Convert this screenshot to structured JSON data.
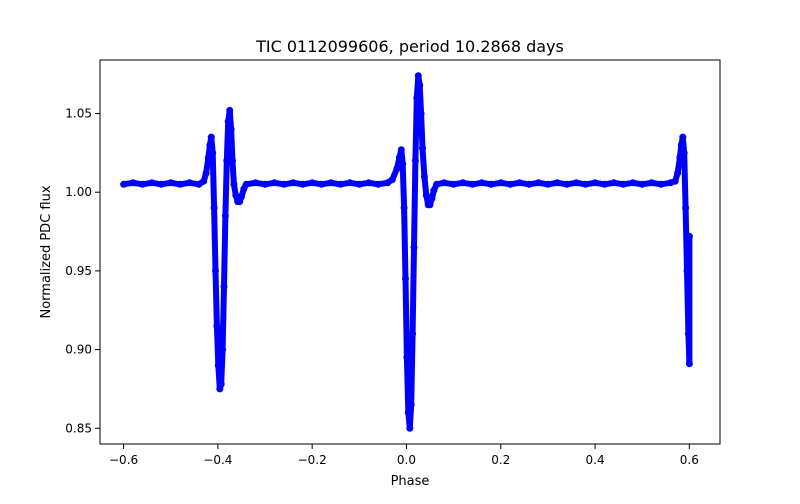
{
  "chart_data": {
    "type": "scatter",
    "title": "TIC 0112099606, period 10.2868 days",
    "xlabel": "Phase",
    "ylabel": "Normalized PDC flux",
    "xlim": [
      -0.65,
      0.665
    ],
    "ylim": [
      0.84,
      1.084
    ],
    "xticks": [
      -0.6,
      -0.4,
      -0.2,
      0.0,
      0.2,
      0.4,
      0.6
    ],
    "xtick_labels": [
      "−0.6",
      "−0.4",
      "−0.2",
      "0.0",
      "0.2",
      "0.4",
      "0.6"
    ],
    "yticks": [
      0.85,
      0.9,
      0.95,
      1.0,
      1.05
    ],
    "ytick_labels": [
      "0.85",
      "0.90",
      "0.95",
      "1.00",
      "1.05"
    ],
    "grid": false,
    "marker_color": "#0000ff",
    "series": [
      {
        "name": "PDC flux",
        "points": [
          [
            -0.6,
            1.005
          ],
          [
            -0.58,
            1.006
          ],
          [
            -0.56,
            1.005
          ],
          [
            -0.54,
            1.006
          ],
          [
            -0.52,
            1.005
          ],
          [
            -0.5,
            1.006
          ],
          [
            -0.48,
            1.005
          ],
          [
            -0.46,
            1.006
          ],
          [
            -0.44,
            1.005
          ],
          [
            -0.43,
            1.007
          ],
          [
            -0.425,
            1.012
          ],
          [
            -0.42,
            1.022
          ],
          [
            -0.417,
            1.03
          ],
          [
            -0.414,
            1.035
          ],
          [
            -0.411,
            1.025
          ],
          [
            -0.408,
            0.99
          ],
          [
            -0.405,
            0.95
          ],
          [
            -0.402,
            0.915
          ],
          [
            -0.399,
            0.89
          ],
          [
            -0.396,
            0.875
          ],
          [
            -0.393,
            0.878
          ],
          [
            -0.39,
            0.9
          ],
          [
            -0.387,
            0.94
          ],
          [
            -0.384,
            0.985
          ],
          [
            -0.381,
            1.02
          ],
          [
            -0.378,
            1.045
          ],
          [
            -0.375,
            1.052
          ],
          [
            -0.372,
            1.04
          ],
          [
            -0.369,
            1.02
          ],
          [
            -0.366,
            1.005
          ],
          [
            -0.362,
            0.998
          ],
          [
            -0.358,
            0.994
          ],
          [
            -0.354,
            0.994
          ],
          [
            -0.35,
            0.997
          ],
          [
            -0.345,
            1.002
          ],
          [
            -0.34,
            1.005
          ],
          [
            -0.32,
            1.006
          ],
          [
            -0.3,
            1.005
          ],
          [
            -0.28,
            1.006
          ],
          [
            -0.26,
            1.005
          ],
          [
            -0.24,
            1.006
          ],
          [
            -0.22,
            1.005
          ],
          [
            -0.2,
            1.006
          ],
          [
            -0.18,
            1.005
          ],
          [
            -0.16,
            1.006
          ],
          [
            -0.14,
            1.005
          ],
          [
            -0.12,
            1.006
          ],
          [
            -0.1,
            1.005
          ],
          [
            -0.08,
            1.006
          ],
          [
            -0.06,
            1.005
          ],
          [
            -0.04,
            1.006
          ],
          [
            -0.03,
            1.008
          ],
          [
            -0.02,
            1.015
          ],
          [
            -0.015,
            1.022
          ],
          [
            -0.011,
            1.027
          ],
          [
            -0.008,
            1.018
          ],
          [
            -0.005,
            0.99
          ],
          [
            -0.002,
            0.945
          ],
          [
            0.001,
            0.895
          ],
          [
            0.004,
            0.86
          ],
          [
            0.007,
            0.85
          ],
          [
            0.01,
            0.865
          ],
          [
            0.013,
            0.91
          ],
          [
            0.016,
            0.965
          ],
          [
            0.019,
            1.02
          ],
          [
            0.022,
            1.06
          ],
          [
            0.025,
            1.074
          ],
          [
            0.028,
            1.068
          ],
          [
            0.031,
            1.05
          ],
          [
            0.034,
            1.028
          ],
          [
            0.038,
            1.01
          ],
          [
            0.042,
            0.998
          ],
          [
            0.046,
            0.992
          ],
          [
            0.05,
            0.992
          ],
          [
            0.054,
            0.996
          ],
          [
            0.058,
            1.001
          ],
          [
            0.064,
            1.005
          ],
          [
            0.08,
            1.006
          ],
          [
            0.1,
            1.005
          ],
          [
            0.12,
            1.006
          ],
          [
            0.14,
            1.005
          ],
          [
            0.16,
            1.006
          ],
          [
            0.18,
            1.005
          ],
          [
            0.2,
            1.006
          ],
          [
            0.22,
            1.005
          ],
          [
            0.24,
            1.006
          ],
          [
            0.26,
            1.005
          ],
          [
            0.28,
            1.006
          ],
          [
            0.3,
            1.005
          ],
          [
            0.32,
            1.006
          ],
          [
            0.34,
            1.005
          ],
          [
            0.36,
            1.006
          ],
          [
            0.38,
            1.005
          ],
          [
            0.4,
            1.006
          ],
          [
            0.42,
            1.005
          ],
          [
            0.44,
            1.006
          ],
          [
            0.46,
            1.005
          ],
          [
            0.48,
            1.006
          ],
          [
            0.5,
            1.005
          ],
          [
            0.52,
            1.006
          ],
          [
            0.54,
            1.005
          ],
          [
            0.56,
            1.006
          ],
          [
            0.57,
            1.007
          ],
          [
            0.575,
            1.012
          ],
          [
            0.58,
            1.022
          ],
          [
            0.583,
            1.03
          ],
          [
            0.586,
            1.035
          ],
          [
            0.589,
            1.025
          ],
          [
            0.592,
            0.99
          ],
          [
            0.595,
            0.95
          ],
          [
            0.598,
            0.91
          ],
          [
            0.6,
            0.891
          ],
          [
            0.6,
            0.972
          ]
        ]
      }
    ]
  }
}
